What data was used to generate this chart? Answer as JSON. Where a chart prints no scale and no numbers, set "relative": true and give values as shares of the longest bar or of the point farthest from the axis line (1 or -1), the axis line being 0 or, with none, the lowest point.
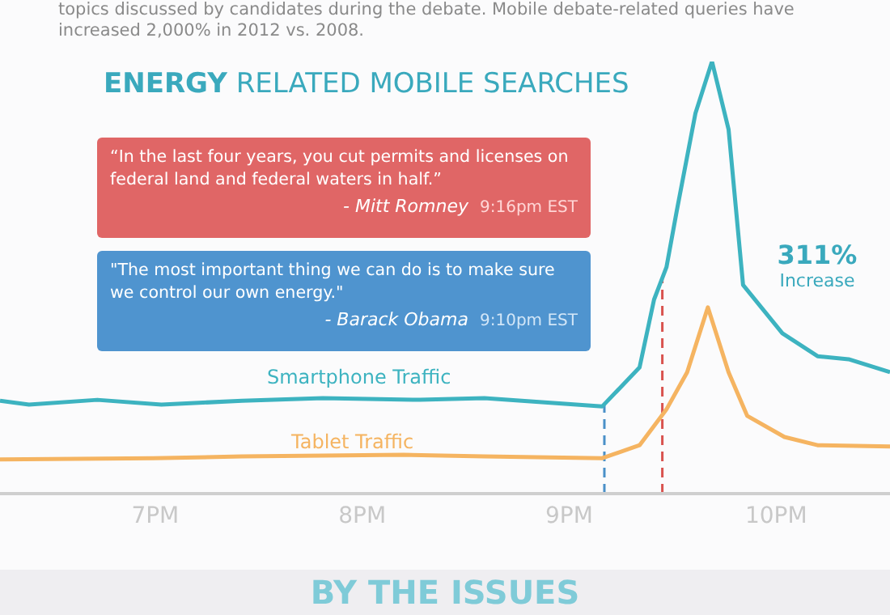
{
  "chart_data": {
    "type": "line",
    "title": "ENERGY RELATED MOBILE SEARCHES",
    "relative": true,
    "xlim": [
      6.25,
      10.55
    ],
    "xticks": [
      {
        "value": 7,
        "label": "7PM"
      },
      {
        "value": 8,
        "label": "8PM"
      },
      {
        "value": 9,
        "label": "9PM"
      },
      {
        "value": 10,
        "label": "10PM"
      }
    ],
    "series": [
      {
        "name": "Smartphone Traffic",
        "color": "#3db3c0",
        "x": [
          6.25,
          6.39,
          6.72,
          7.03,
          7.42,
          7.81,
          8.28,
          8.59,
          8.91,
          9.16,
          9.34,
          9.41,
          9.47,
          9.52,
          9.61,
          9.69,
          9.77,
          9.84,
          10.03,
          10.2,
          10.35,
          10.55
        ],
        "values": [
          0.215,
          0.206,
          0.217,
          0.206,
          0.215,
          0.221,
          0.217,
          0.221,
          0.21,
          0.202,
          0.292,
          0.449,
          0.524,
          0.655,
          0.88,
          1,
          0.843,
          0.483,
          0.371,
          0.318,
          0.311,
          0.281
        ]
      },
      {
        "name": "Tablet Traffic",
        "color": "#f5b461",
        "x": [
          6.25,
          6.99,
          7.42,
          8.2,
          8.59,
          9.16,
          9.34,
          9.47,
          9.57,
          9.67,
          9.77,
          9.86,
          10.04,
          10.2,
          10.55
        ],
        "values": [
          0.079,
          0.082,
          0.086,
          0.09,
          0.086,
          0.082,
          0.112,
          0.195,
          0.281,
          0.431,
          0.281,
          0.18,
          0.131,
          0.112,
          0.109
        ]
      }
    ],
    "ref_lines": [
      {
        "axis": "x",
        "value": 9.17,
        "color": "#4a90c8",
        "line_style": "dashed"
      },
      {
        "axis": "x",
        "value": 9.45,
        "color": "#d9534f",
        "line_style": "dashed"
      }
    ],
    "annotations": [
      "topics discussed by candidates during the debate. Mobile debate-related queries have increased 2,000% in 2012 vs. 2008.",
      "“In the last four years, you cut permits and licenses on federal land and federal waters in half.”",
      "- Mitt Romney",
      "9:16pm EST",
      "\"The most important thing we can do is to make sure we control our own energy.\"",
      "- Barack Obama",
      "9:10pm EST",
      "311%",
      "Increase",
      "BY THE ISSUES"
    ],
    "marker": "none",
    "line_style": "solid"
  }
}
